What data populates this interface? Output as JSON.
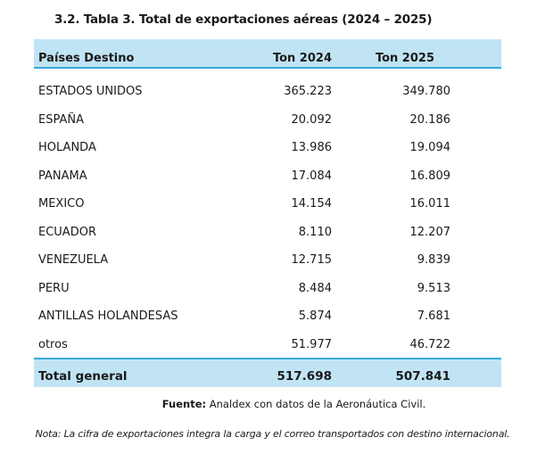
{
  "title": "3.2.  Tabla 3. Total de exportaciones aéreas (2024 – 2025)",
  "table": {
    "headers": [
      "Países Destino",
      "Ton 2024",
      "Ton 2025"
    ],
    "rows": [
      {
        "country": "ESTADOS UNIDOS",
        "ton2024": "365.223",
        "ton2025": "349.780"
      },
      {
        "country": "ESPAÑA",
        "ton2024": "20.092",
        "ton2025": "20.186"
      },
      {
        "country": "HOLANDA",
        "ton2024": "13.986",
        "ton2025": "19.094"
      },
      {
        "country": "PANAMA",
        "ton2024": "17.084",
        "ton2025": "16.809"
      },
      {
        "country": "MEXICO",
        "ton2024": "14.154",
        "ton2025": "16.011"
      },
      {
        "country": "ECUADOR",
        "ton2024": "8.110",
        "ton2025": "12.207"
      },
      {
        "country": "VENEZUELA",
        "ton2024": "12.715",
        "ton2025": "9.839"
      },
      {
        "country": "PERU",
        "ton2024": "8.484",
        "ton2025": "9.513"
      },
      {
        "country": "ANTILLAS HOLANDESAS",
        "ton2024": "5.874",
        "ton2025": "7.681"
      },
      {
        "country": "otros",
        "ton2024": "51.977",
        "ton2025": "46.722"
      }
    ],
    "total": {
      "label": "Total general",
      "ton2024": "517.698",
      "ton2025": "507.841"
    }
  },
  "source": {
    "label": "Fuente:",
    "text": " Analdex con datos de la Aeronáutica Civil."
  },
  "note": "Nota: La cifra de exportaciones integra la carga y el correo transportados con destino internacional.",
  "colors": {
    "header_bg": "#c0e4f4",
    "rule": "#3aa9d6"
  }
}
